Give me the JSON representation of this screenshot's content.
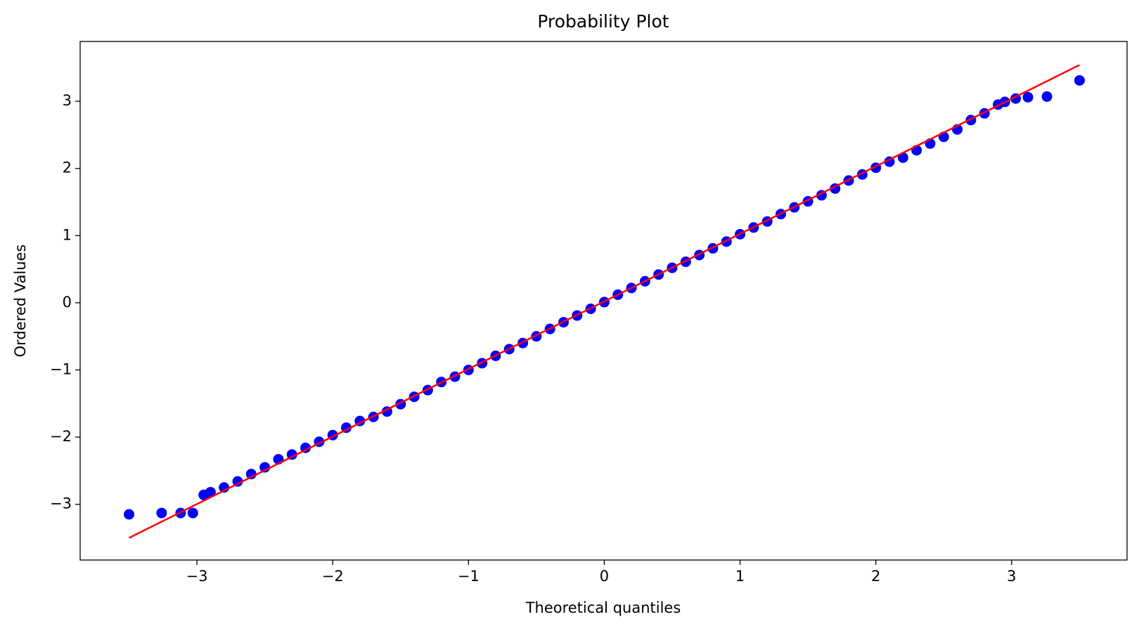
{
  "chart_data": {
    "type": "scatter",
    "title": "Probability Plot",
    "xlabel": "Theoretical quantiles",
    "ylabel": "Ordered Values",
    "color": "#0000ff",
    "x": [
      -3.5,
      -3.26,
      -3.12,
      -3.03,
      -2.95,
      -2.9,
      -2.8,
      -2.7,
      -2.6,
      -2.5,
      -2.4,
      -2.3,
      -2.2,
      -2.1,
      -2.0,
      -1.9,
      -1.8,
      -1.7,
      -1.6,
      -1.5,
      -1.4,
      -1.3,
      -1.2,
      -1.1,
      -1.0,
      -0.9,
      -0.8,
      -0.7,
      -0.6,
      -0.5,
      -0.4,
      -0.3,
      -0.2,
      -0.1,
      0,
      0.1,
      0.2,
      0.3,
      0.4,
      0.5,
      0.6,
      0.7,
      0.8,
      0.9,
      1.0,
      1.1,
      1.2,
      1.3,
      1.4,
      1.5,
      1.6,
      1.7,
      1.8,
      1.9,
      2.0,
      2.1,
      2.2,
      2.3,
      2.4,
      2.5,
      2.6,
      2.7,
      2.8,
      2.9,
      2.95,
      3.03,
      3.12,
      3.26,
      3.5
    ],
    "y": [
      -3.15,
      -3.13,
      -3.13,
      -3.13,
      -2.86,
      -2.82,
      -2.75,
      -2.66,
      -2.55,
      -2.45,
      -2.33,
      -2.26,
      -2.16,
      -2.07,
      -1.97,
      -1.86,
      -1.76,
      -1.7,
      -1.62,
      -1.51,
      -1.4,
      -1.3,
      -1.18,
      -1.1,
      -1.0,
      -0.9,
      -0.79,
      -0.69,
      -0.6,
      -0.5,
      -0.39,
      -0.29,
      -0.19,
      -0.09,
      0.01,
      0.12,
      0.22,
      0.32,
      0.42,
      0.52,
      0.61,
      0.71,
      0.81,
      0.91,
      1.02,
      1.12,
      1.21,
      1.32,
      1.42,
      1.51,
      1.6,
      1.7,
      1.82,
      1.91,
      2.01,
      2.1,
      2.16,
      2.27,
      2.37,
      2.47,
      2.58,
      2.72,
      2.82,
      2.95,
      2.99,
      3.04,
      3.06,
      3.07,
      3.31
    ],
    "line": {
      "x": [
        -3.5,
        3.5
      ],
      "y": [
        -3.5,
        3.54
      ],
      "color": "#ff0000"
    },
    "xlim": [
      -3.86,
      3.85
    ],
    "ylim": [
      -3.83,
      3.89
    ],
    "xticks": [
      {
        "value": -3,
        "label": "−3"
      },
      {
        "value": -2,
        "label": "−2"
      },
      {
        "value": -1,
        "label": "−1"
      },
      0,
      1,
      2,
      3
    ],
    "yticks": [
      {
        "value": -3,
        "label": "−3"
      },
      {
        "value": -2,
        "label": "−2"
      },
      {
        "value": -1,
        "label": "−1"
      },
      0,
      1,
      2,
      3
    ]
  }
}
